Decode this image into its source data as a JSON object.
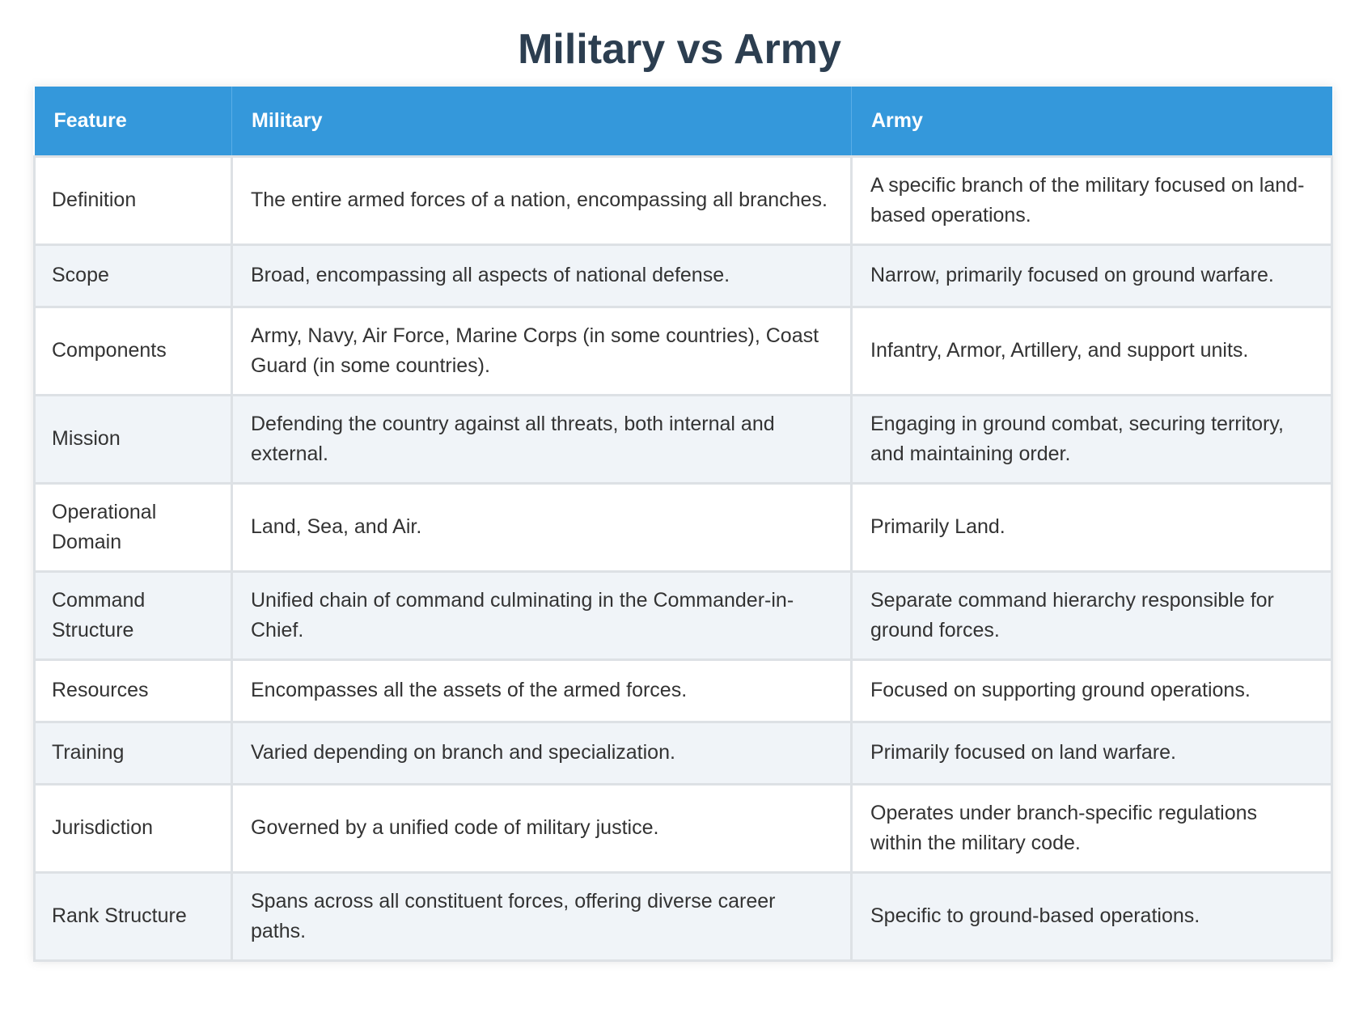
{
  "title": "Military vs Army",
  "table": {
    "headers": [
      "Feature",
      "Military",
      "Army"
    ],
    "rows": [
      {
        "feature": "Definition",
        "military": "The entire armed forces of a nation, encompassing all branches.",
        "army": "A specific branch of the military focused on land-based operations."
      },
      {
        "feature": "Scope",
        "military": "Broad, encompassing all aspects of national defense.",
        "army": "Narrow, primarily focused on ground warfare."
      },
      {
        "feature": "Components",
        "military": "Army, Navy, Air Force, Marine Corps (in some countries), Coast Guard (in some countries).",
        "army": "Infantry, Armor, Artillery, and support units."
      },
      {
        "feature": "Mission",
        "military": "Defending the country against all threats, both internal and external.",
        "army": "Engaging in ground combat, securing territory, and maintaining order."
      },
      {
        "feature": "Operational Domain",
        "military": "Land, Sea, and Air.",
        "army": "Primarily Land."
      },
      {
        "feature": "Command Structure",
        "military": "Unified chain of command culminating in the Commander-in-Chief.",
        "army": "Separate command hierarchy responsible for ground forces."
      },
      {
        "feature": "Resources",
        "military": "Encompasses all the assets of the armed forces.",
        "army": "Focused on supporting ground operations."
      },
      {
        "feature": "Training",
        "military": "Varied depending on branch and specialization.",
        "army": "Primarily focused on land warfare."
      },
      {
        "feature": "Jurisdiction",
        "military": "Governed by a unified code of military justice.",
        "army": "Operates under branch-specific regulations within the military code."
      },
      {
        "feature": "Rank Structure",
        "military": "Spans across all constituent forces, offering diverse career paths.",
        "army": "Specific to ground-based operations."
      }
    ]
  },
  "colors": {
    "header_bg": "#3498db",
    "title": "#2c3e50",
    "row_alt": "#f0f4f8"
  }
}
